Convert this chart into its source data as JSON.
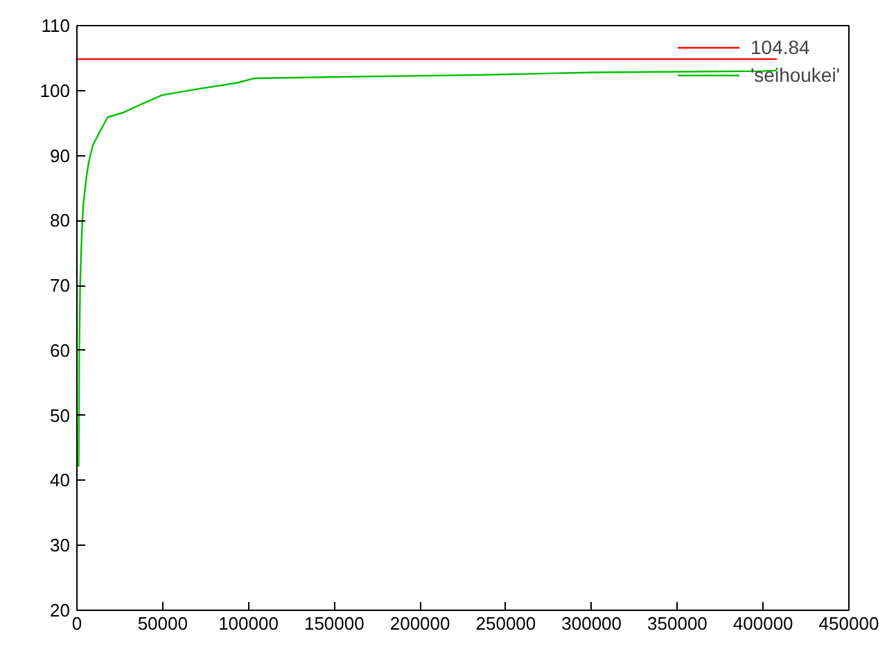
{
  "chart_data": {
    "type": "line",
    "xlim": [
      0,
      450000
    ],
    "ylim": [
      20,
      110
    ],
    "xticks": [
      0,
      50000,
      100000,
      150000,
      200000,
      250000,
      300000,
      350000,
      400000,
      450000
    ],
    "yticks": [
      20,
      30,
      40,
      50,
      60,
      70,
      80,
      90,
      100,
      110
    ],
    "grid": false,
    "legend": "top right",
    "marker": "none",
    "line_style": "solid",
    "series": [
      {
        "name": "104.84",
        "color": "#ff0000",
        "x": [
          0,
          408000
        ],
        "values": [
          104.84,
          104.84
        ]
      },
      {
        "name": "'seihoukei'",
        "color": "#00c000",
        "x": [
          1000,
          1400,
          1900,
          2800,
          3700,
          5700,
          7000,
          9300,
          12800,
          17900,
          26900,
          38300,
          49600,
          69400,
          93600,
          103600,
          178000,
          234000,
          302000,
          400000,
          408000
        ],
        "values": [
          42.1,
          60.6,
          70.2,
          77.7,
          82.4,
          87.0,
          89.1,
          91.6,
          93.4,
          95.9,
          96.6,
          98.0,
          99.3,
          100.2,
          101.2,
          101.9,
          102.2,
          102.4,
          102.8,
          103.0,
          103.1
        ]
      }
    ]
  }
}
